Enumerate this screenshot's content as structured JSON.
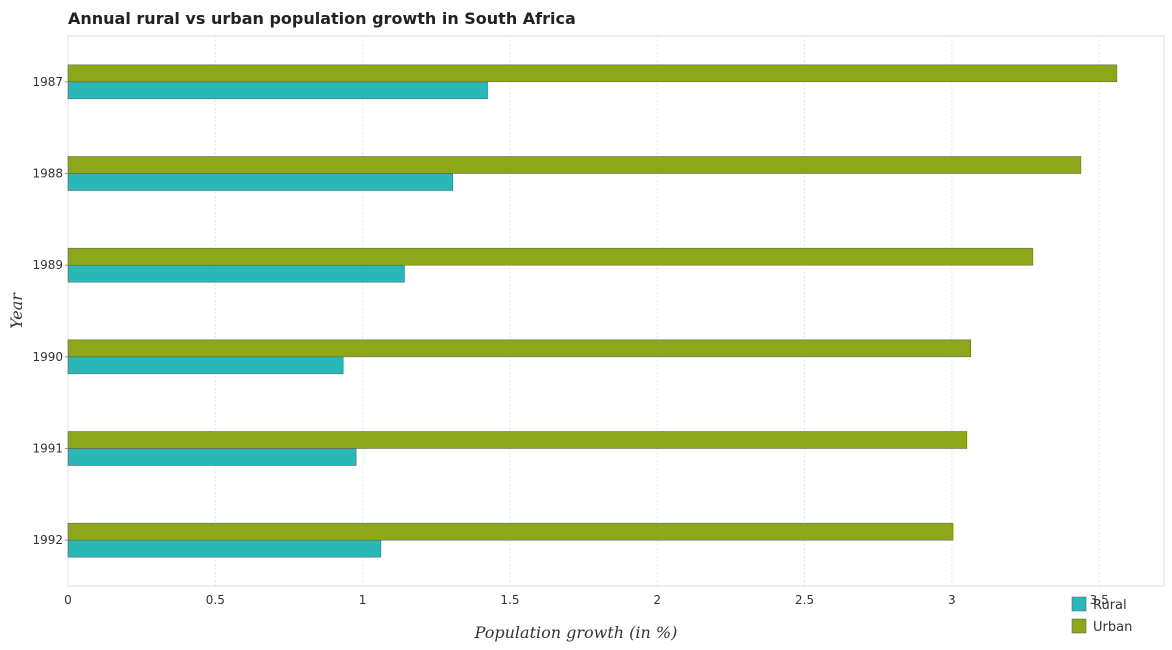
{
  "chart_data": {
    "type": "bar",
    "orientation": "horizontal",
    "title": "Annual rural vs urban population growth in South Africa",
    "xlabel": "Population growth (in %)",
    "ylabel": "Year",
    "categories": [
      "1987",
      "1988",
      "1989",
      "1990",
      "1991",
      "1992"
    ],
    "series": [
      {
        "name": "Rural",
        "color": "#2ab7b7",
        "values": [
          1.424,
          1.306,
          1.142,
          0.934,
          0.978,
          1.062
        ]
      },
      {
        "name": "Urban",
        "color": "#8ca81a",
        "values": [
          3.56,
          3.438,
          3.275,
          3.064,
          3.051,
          3.004
        ]
      }
    ],
    "xlim": [
      0,
      3.72
    ],
    "xticks": [
      "0",
      "0.5",
      "1",
      "1.5",
      "2",
      "2.5",
      "3",
      "3.5"
    ],
    "grid": true,
    "legend_position": "bottom-right"
  }
}
